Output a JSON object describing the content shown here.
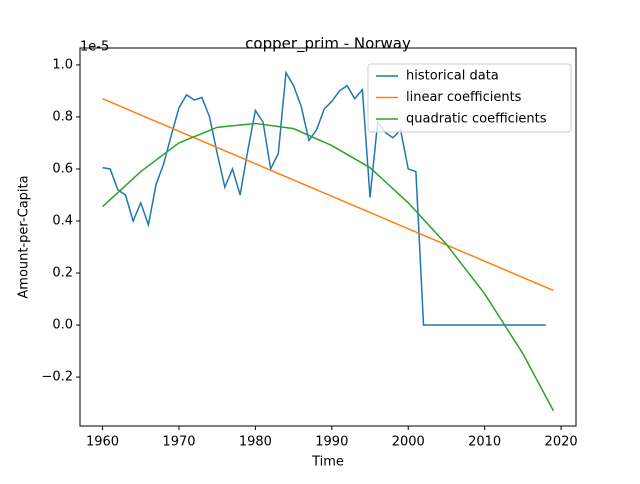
{
  "chart_data": {
    "type": "line",
    "title": "copper_prim - Norway",
    "xlabel": "Time",
    "ylabel": "Amount-per-Capita",
    "offset_label": "1e-5",
    "xlim": [
      1957.05,
      2021.95
    ],
    "ylim": [
      -0.388,
      1.065
    ],
    "xticks": [
      1960,
      1970,
      1980,
      1990,
      2000,
      2010,
      2020
    ],
    "yticks": [
      {
        "value": -0.2,
        "label": "−0.2"
      },
      {
        "value": 0,
        "label": "0.0"
      },
      0.2,
      0.4,
      0.6,
      0.8,
      {
        "value": 1,
        "label": "1.0"
      }
    ],
    "legend": "upper right",
    "series": [
      {
        "name": "historical data",
        "color": "#1f77b4",
        "x": [
          1960,
          1961,
          1962,
          1963,
          1964,
          1965,
          1966,
          1967,
          1968,
          1969,
          1970,
          1971,
          1972,
          1973,
          1974,
          1975,
          1976,
          1977,
          1978,
          1979,
          1980,
          1981,
          1982,
          1983,
          1984,
          1985,
          1986,
          1987,
          1988,
          1989,
          1990,
          1991,
          1992,
          1993,
          1994,
          1995,
          1996,
          1997,
          1998,
          1999,
          2000,
          2001,
          2002,
          2003,
          2004,
          2005,
          2006,
          2007,
          2008,
          2009,
          2010,
          2011,
          2012,
          2013,
          2014,
          2015,
          2016,
          2017,
          2018
        ],
        "values": [
          0.605,
          0.6,
          0.52,
          0.5,
          0.4,
          0.47,
          0.385,
          0.54,
          0.62,
          0.73,
          0.835,
          0.885,
          0.865,
          0.875,
          0.8,
          0.66,
          0.53,
          0.6,
          0.5,
          0.67,
          0.825,
          0.78,
          0.6,
          0.66,
          0.97,
          0.92,
          0.84,
          0.71,
          0.75,
          0.83,
          0.86,
          0.9,
          0.92,
          0.87,
          0.905,
          0.49,
          0.78,
          0.74,
          0.72,
          0.75,
          0.6,
          0.59,
          0,
          0,
          0,
          0,
          0,
          0,
          0,
          0,
          0,
          0,
          0,
          0,
          0,
          0,
          0,
          0,
          0
        ]
      },
      {
        "name": "linear coefficients",
        "color": "#ff7f0e",
        "x": [
          1960,
          2019
        ],
        "values": [
          0.87,
          0.133
        ]
      },
      {
        "name": "quadratic coefficients",
        "color": "#2ca02c",
        "x": [
          1960,
          1965,
          1970,
          1975,
          1980,
          1985,
          1990,
          1995,
          2000,
          2005,
          2010,
          2015,
          2019
        ],
        "values": [
          0.455,
          0.59,
          0.7,
          0.76,
          0.775,
          0.755,
          0.69,
          0.605,
          0.47,
          0.31,
          0.12,
          -0.11,
          -0.33
        ]
      }
    ]
  }
}
